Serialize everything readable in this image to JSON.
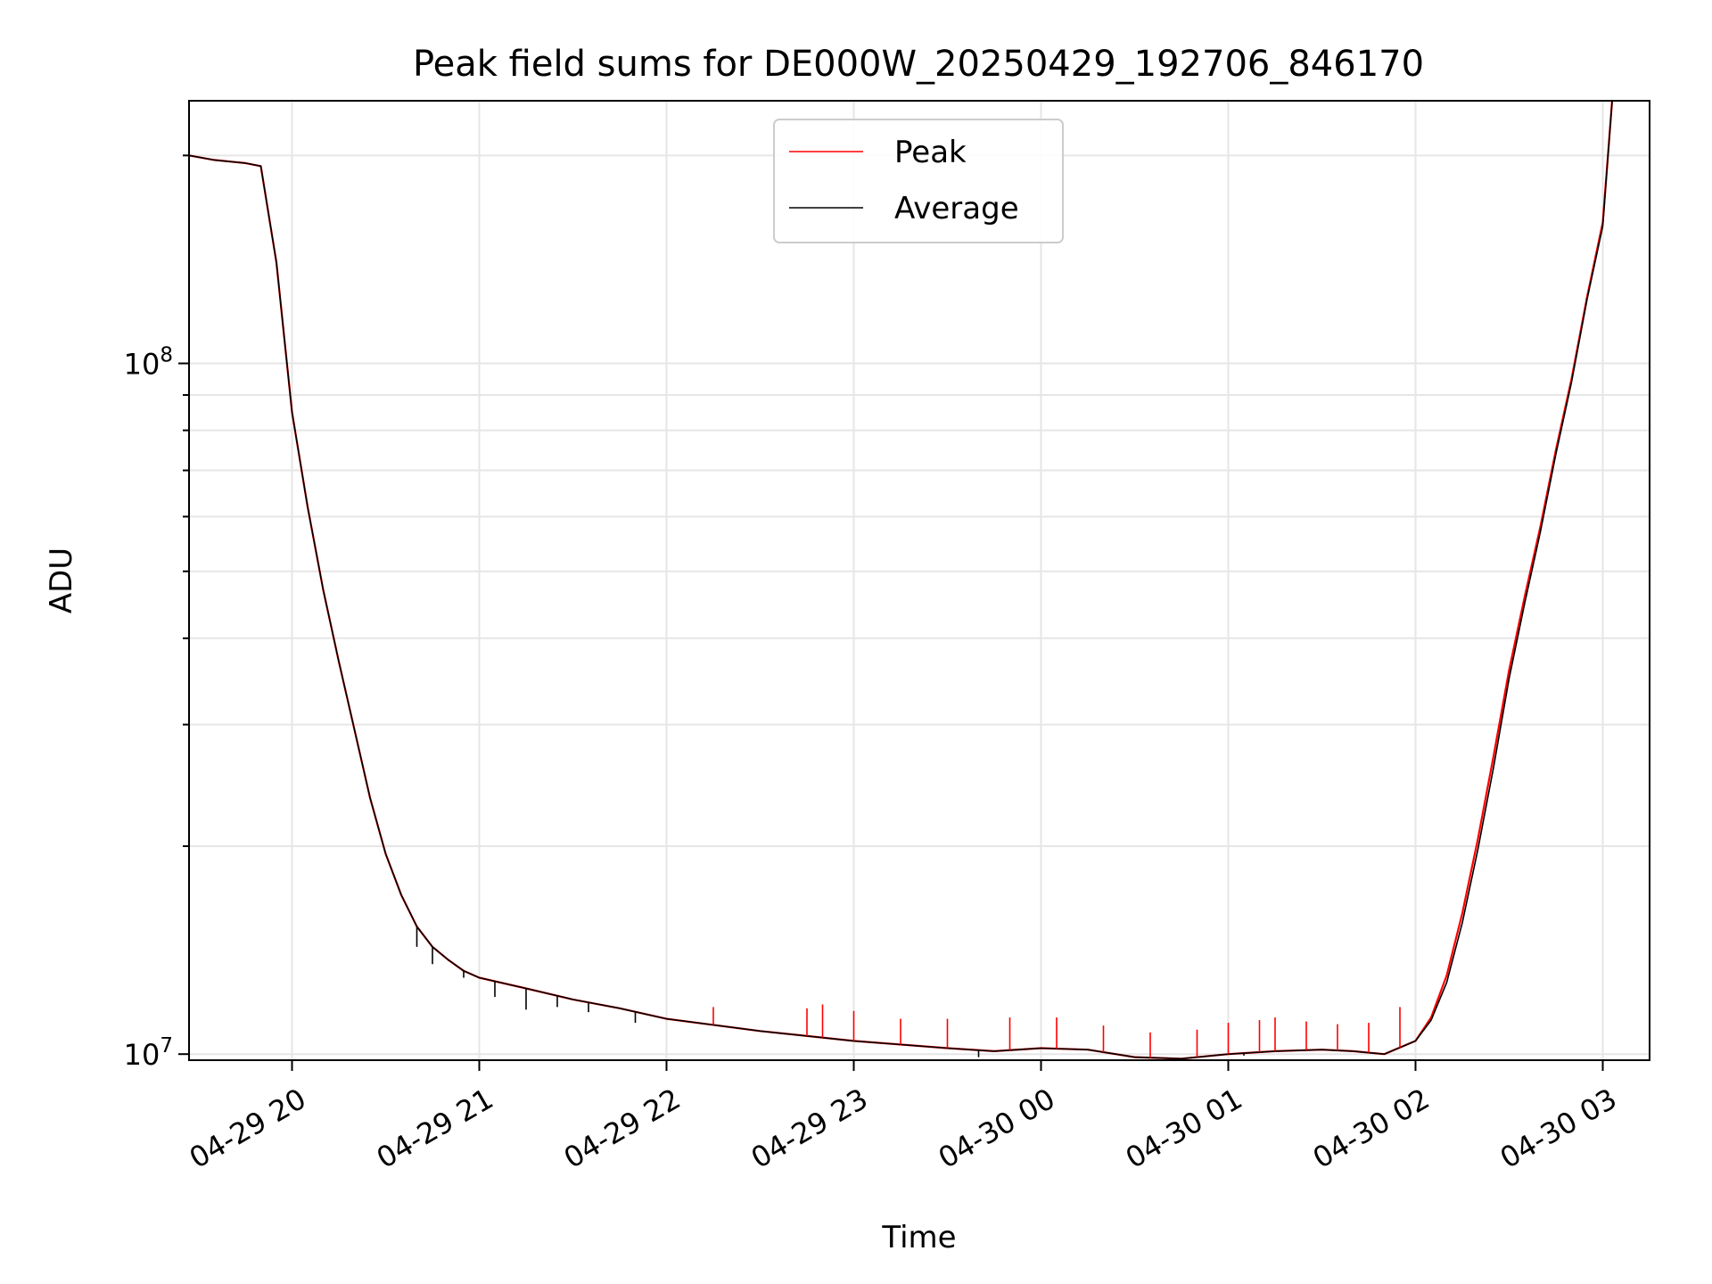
{
  "chart_data": {
    "type": "line",
    "title": "Peak field sums for DE000W_20250429_192706_846170",
    "xlabel": "Time",
    "ylabel": "ADU",
    "y_scale": "log",
    "grid": true,
    "legend_position": "top-center",
    "xlim": [
      "2025-04-29 19:27",
      "2025-04-30 03:15"
    ],
    "ylim": [
      9800000,
      240000000
    ],
    "x_ticks": [
      "04-29 20",
      "04-29 21",
      "04-29 22",
      "04-29 23",
      "04-30 00",
      "04-30 01",
      "04-30 02",
      "04-30 03"
    ],
    "y_ticks": [
      {
        "value": 10000000,
        "base": "10",
        "exp": "7"
      },
      {
        "value": 100000000,
        "base": "10",
        "exp": "8"
      }
    ],
    "series": [
      {
        "name": "Peak",
        "color": "#ff0000",
        "x": [
          "2025-04-29 19:27",
          "2025-04-29 19:35",
          "2025-04-29 19:45",
          "2025-04-29 19:50",
          "2025-04-29 19:55",
          "2025-04-29 20:00",
          "2025-04-29 20:05",
          "2025-04-29 20:10",
          "2025-04-29 20:15",
          "2025-04-29 20:20",
          "2025-04-29 20:25",
          "2025-04-29 20:30",
          "2025-04-29 20:35",
          "2025-04-29 20:40",
          "2025-04-29 20:45",
          "2025-04-29 20:50",
          "2025-04-29 20:55",
          "2025-04-29 21:00",
          "2025-04-29 21:15",
          "2025-04-29 21:30",
          "2025-04-29 21:45",
          "2025-04-29 22:00",
          "2025-04-29 22:30",
          "2025-04-29 23:00",
          "2025-04-29 23:30",
          "2025-04-29 23:45",
          "2025-04-30 00:00",
          "2025-04-30 00:15",
          "2025-04-30 00:30",
          "2025-04-30 00:45",
          "2025-04-30 01:00",
          "2025-04-30 01:15",
          "2025-04-30 01:30",
          "2025-04-30 01:40",
          "2025-04-30 01:50",
          "2025-04-30 02:00",
          "2025-04-30 02:05",
          "2025-04-30 02:10",
          "2025-04-30 02:15",
          "2025-04-30 02:20",
          "2025-04-30 02:25",
          "2025-04-30 02:30",
          "2025-04-30 02:35",
          "2025-04-30 02:40",
          "2025-04-30 02:45",
          "2025-04-30 02:50",
          "2025-04-30 02:55",
          "2025-04-30 03:00",
          "2025-04-30 03:03"
        ],
        "values": [
          200000000,
          197000000,
          195000000,
          193000000,
          140000000,
          85000000,
          62000000,
          47000000,
          37000000,
          29500000,
          23500000,
          19500000,
          17000000,
          15300000,
          14300000,
          13700000,
          13200000,
          12900000,
          12450000,
          12000000,
          11650000,
          11250000,
          10800000,
          10450000,
          10200000,
          10100000,
          10200000,
          10150000,
          9900000,
          9850000,
          10000000,
          10100000,
          10150000,
          10100000,
          10000000,
          10450000,
          11300000,
          13000000,
          16000000,
          20500000,
          27000000,
          36000000,
          46000000,
          58000000,
          75000000,
          95000000,
          125000000,
          160000000,
          240000000
        ],
        "spikes": [
          {
            "x": "2025-04-29 22:15",
            "value": 11700000
          },
          {
            "x": "2025-04-29 22:45",
            "value": 11650000
          },
          {
            "x": "2025-04-29 22:50",
            "value": 11800000
          },
          {
            "x": "2025-04-29 23:00",
            "value": 11550000
          },
          {
            "x": "2025-04-29 23:15",
            "value": 11250000
          },
          {
            "x": "2025-04-29 23:30",
            "value": 11250000
          },
          {
            "x": "2025-04-29 23:50",
            "value": 11300000
          },
          {
            "x": "2025-04-30 00:05",
            "value": 11300000
          },
          {
            "x": "2025-04-30 00:20",
            "value": 11000000
          },
          {
            "x": "2025-04-30 00:35",
            "value": 10750000
          },
          {
            "x": "2025-04-30 00:50",
            "value": 10850000
          },
          {
            "x": "2025-04-30 01:00",
            "value": 11100000
          },
          {
            "x": "2025-04-30 01:10",
            "value": 11200000
          },
          {
            "x": "2025-04-30 01:15",
            "value": 11300000
          },
          {
            "x": "2025-04-30 01:25",
            "value": 11150000
          },
          {
            "x": "2025-04-30 01:35",
            "value": 11050000
          },
          {
            "x": "2025-04-30 01:45",
            "value": 11100000
          },
          {
            "x": "2025-04-30 01:55",
            "value": 11700000
          }
        ]
      },
      {
        "name": "Average",
        "color": "#000000",
        "x": [
          "2025-04-29 19:27",
          "2025-04-29 19:35",
          "2025-04-29 19:45",
          "2025-04-29 19:50",
          "2025-04-29 19:55",
          "2025-04-29 20:00",
          "2025-04-29 20:05",
          "2025-04-29 20:10",
          "2025-04-29 20:15",
          "2025-04-29 20:20",
          "2025-04-29 20:25",
          "2025-04-29 20:30",
          "2025-04-29 20:35",
          "2025-04-29 20:40",
          "2025-04-29 20:45",
          "2025-04-29 20:50",
          "2025-04-29 20:55",
          "2025-04-29 21:00",
          "2025-04-29 21:15",
          "2025-04-29 21:30",
          "2025-04-29 21:45",
          "2025-04-29 22:00",
          "2025-04-29 22:30",
          "2025-04-29 23:00",
          "2025-04-29 23:30",
          "2025-04-29 23:45",
          "2025-04-30 00:00",
          "2025-04-30 00:15",
          "2025-04-30 00:30",
          "2025-04-30 00:45",
          "2025-04-30 01:00",
          "2025-04-30 01:15",
          "2025-04-30 01:30",
          "2025-04-30 01:40",
          "2025-04-30 01:50",
          "2025-04-30 02:00",
          "2025-04-30 02:05",
          "2025-04-30 02:10",
          "2025-04-30 02:15",
          "2025-04-30 02:20",
          "2025-04-30 02:25",
          "2025-04-30 02:30",
          "2025-04-30 02:35",
          "2025-04-30 02:40",
          "2025-04-30 02:45",
          "2025-04-30 02:50",
          "2025-04-30 02:55",
          "2025-04-30 03:00",
          "2025-04-30 03:03"
        ],
        "values": [
          200000000,
          197000000,
          195000000,
          193000000,
          140000000,
          85000000,
          62000000,
          47000000,
          37000000,
          29500000,
          23500000,
          19500000,
          17000000,
          15300000,
          14300000,
          13700000,
          13200000,
          12900000,
          12450000,
          12000000,
          11650000,
          11250000,
          10800000,
          10450000,
          10200000,
          10100000,
          10200000,
          10150000,
          9900000,
          9850000,
          10000000,
          10100000,
          10150000,
          10100000,
          10000000,
          10450000,
          11200000,
          12700000,
          15500000,
          19800000,
          26000000,
          35000000,
          45000000,
          57000000,
          74000000,
          94000000,
          124000000,
          158000000,
          240000000
        ],
        "dips": [
          {
            "x": "2025-04-29 20:40",
            "value": 14300000
          },
          {
            "x": "2025-04-29 20:45",
            "value": 13500000
          },
          {
            "x": "2025-04-29 20:55",
            "value": 12900000
          },
          {
            "x": "2025-04-29 21:05",
            "value": 12100000
          },
          {
            "x": "2025-04-29 21:15",
            "value": 11600000
          },
          {
            "x": "2025-04-29 21:25",
            "value": 11700000
          },
          {
            "x": "2025-04-29 21:35",
            "value": 11500000
          },
          {
            "x": "2025-04-29 21:50",
            "value": 11100000
          },
          {
            "x": "2025-04-29 23:40",
            "value": 9900000
          },
          {
            "x": "2025-04-30 01:05",
            "value": 9950000
          }
        ]
      }
    ]
  }
}
